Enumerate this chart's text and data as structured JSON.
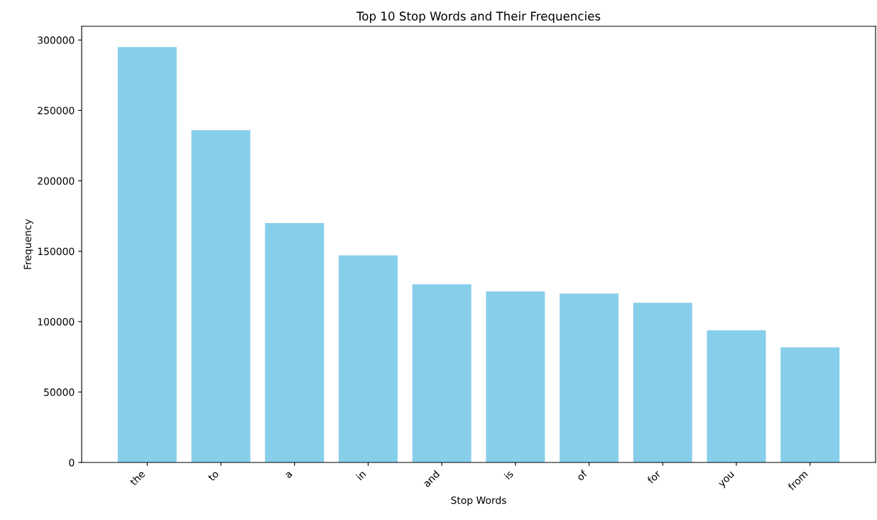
{
  "chart_data": {
    "type": "bar",
    "title": "Top 10 Stop Words and Their Frequencies",
    "xlabel": "Stop Words",
    "ylabel": "Frequency",
    "categories": [
      "the",
      "to",
      "a",
      "in",
      "and",
      "is",
      "of",
      "for",
      "you",
      "from"
    ],
    "values": [
      295000,
      236000,
      170000,
      147000,
      126500,
      121500,
      120000,
      113400,
      93800,
      81700
    ],
    "color": "#87ceeb",
    "ylim": [
      0,
      309750
    ],
    "yticks": [
      0,
      50000,
      100000,
      150000,
      200000,
      250000,
      300000
    ],
    "grid": false
  }
}
